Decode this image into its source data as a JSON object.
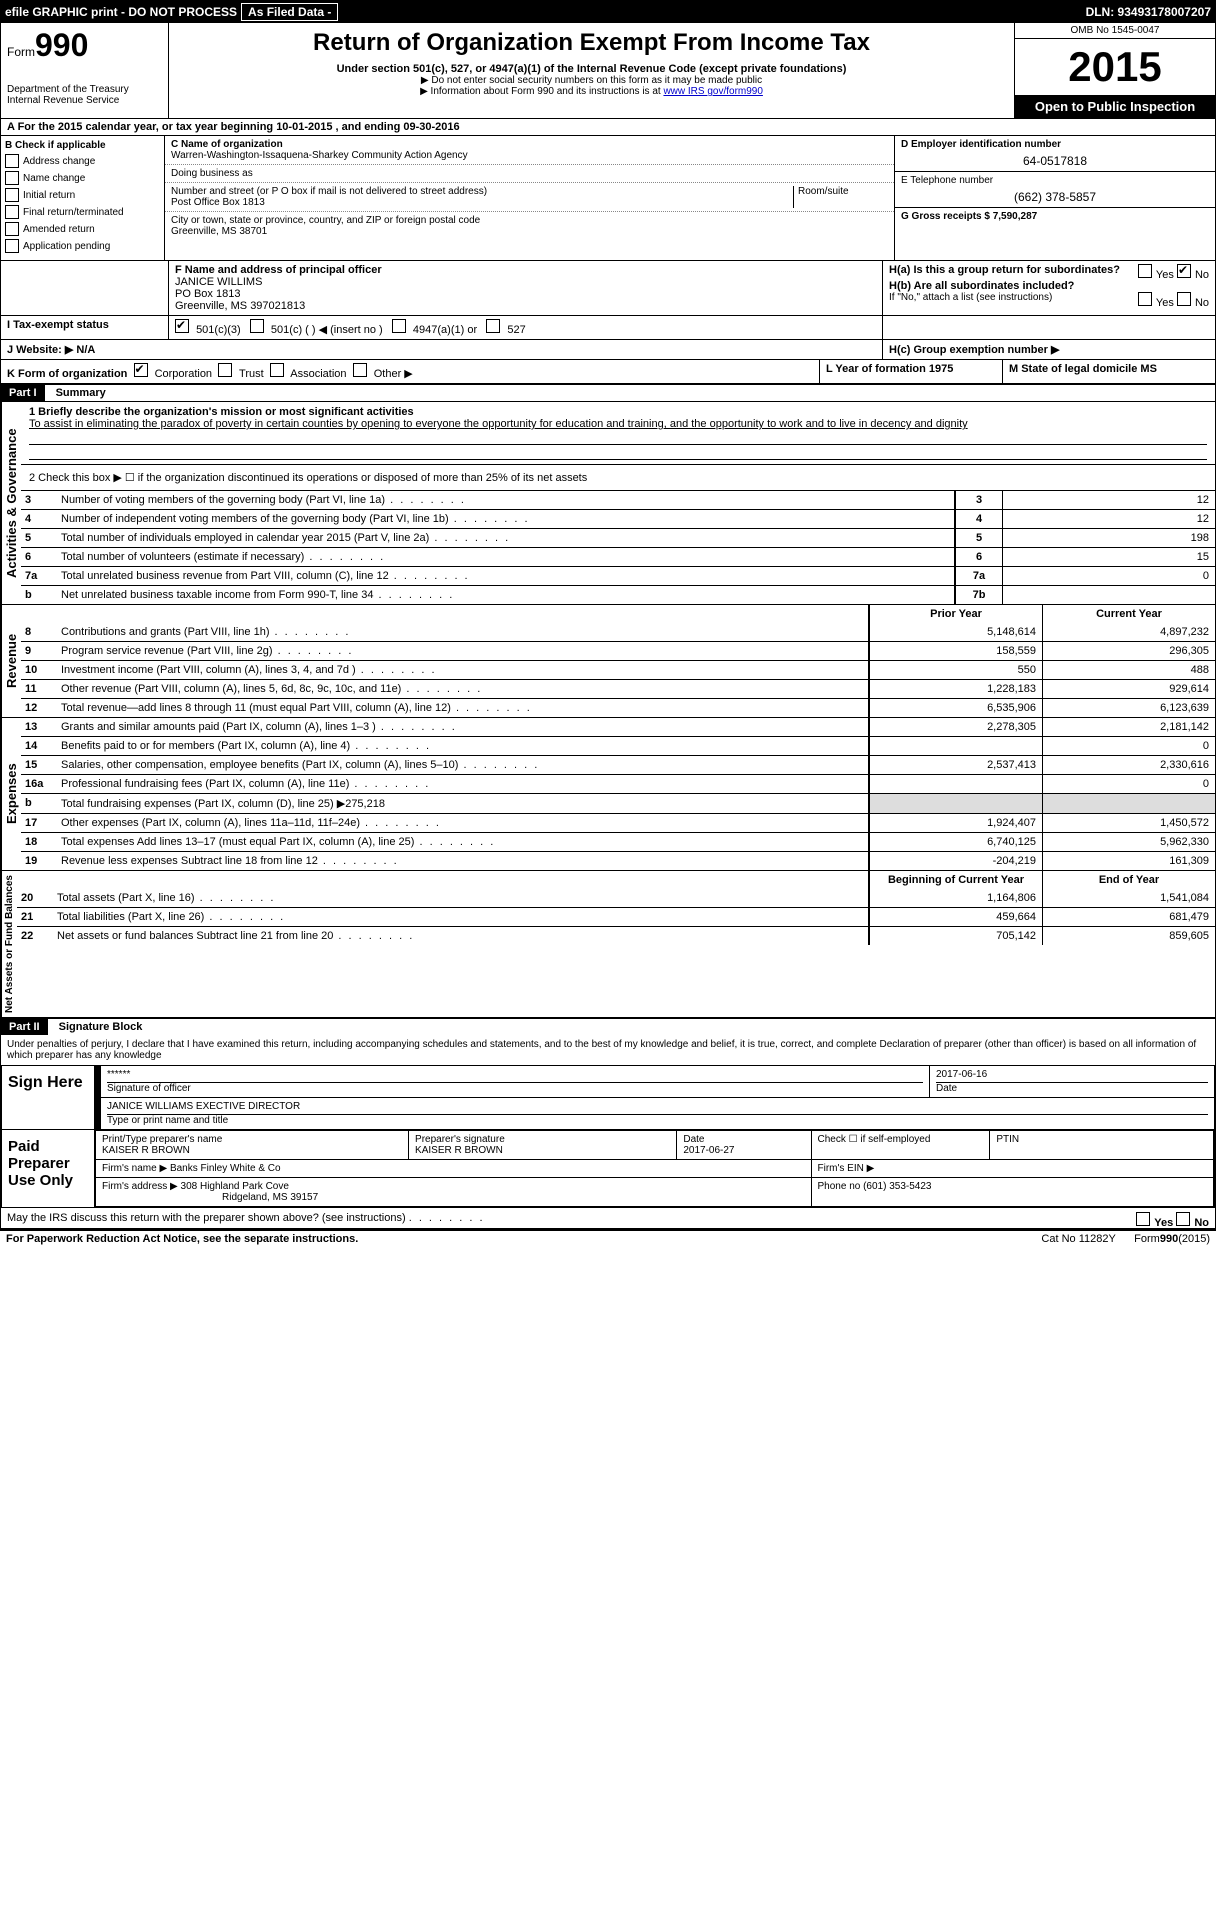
{
  "topbar": {
    "efile": "efile GRAPHIC print - DO NOT PROCESS",
    "asfiled": "As Filed Data -",
    "dln": "DLN: 93493178007207"
  },
  "header": {
    "form": "Form",
    "num": "990",
    "dept": "Department of the Treasury",
    "irs": "Internal Revenue Service",
    "title": "Return of Organization Exempt From Income Tax",
    "sub": "Under section 501(c), 527, or 4947(a)(1) of the Internal Revenue Code (except private foundations)",
    "note1": "▶ Do not enter social security numbers on this form as it may be made public",
    "note2_pre": "▶ Information about Form 990 and its instructions is at ",
    "note2_link": "www IRS gov/form990",
    "omb": "OMB No 1545-0047",
    "year": "2015",
    "open": "Open to Public Inspection"
  },
  "lineA": "A  For the 2015 calendar year, or tax year beginning 10-01-2015    , and ending 09-30-2016",
  "B": {
    "label": "B  Check if applicable",
    "items": [
      "Address change",
      "Name change",
      "Initial return",
      "Final return/terminated",
      "Amended return",
      "Application pending"
    ]
  },
  "C": {
    "label": "C Name of organization",
    "name": "Warren-Washington-Issaquena-Sharkey Community Action Agency",
    "dba_label": "Doing business as",
    "street_label": "Number and street (or P O  box if mail is not delivered to street address)",
    "room_label": "Room/suite",
    "street": "Post Office Box 1813",
    "city_label": "City or town, state or province, country, and ZIP or foreign postal code",
    "city": "Greenville, MS  38701"
  },
  "D": {
    "label": "D Employer identification number",
    "value": "64-0517818"
  },
  "E": {
    "label": "E Telephone number",
    "value": "(662) 378-5857"
  },
  "G": "G Gross receipts $ 7,590,287",
  "F": {
    "label": "F  Name and address of principal officer",
    "name": "JANICE WILLIMS",
    "addr1": "PO Box 1813",
    "addr2": "Greenville, MS  397021813"
  },
  "H": {
    "a": "H(a)  Is this a group return for subordinates?",
    "a_no": "No",
    "b": "H(b)  Are all subordinates included?",
    "b_note": "If \"No,\" attach a list  (see instructions)",
    "c": "H(c)   Group exemption number ▶"
  },
  "I": {
    "label": "I   Tax-exempt status",
    "opt1": "501(c)(3)",
    "opt2": "501(c) (   ) ◀ (insert no )",
    "opt3": "4947(a)(1) or",
    "opt4": "527"
  },
  "J": "J  Website: ▶  N/A",
  "K": {
    "label": "K Form of organization",
    "opts": [
      "Corporation",
      "Trust",
      "Association",
      "Other ▶"
    ]
  },
  "L": "L Year of formation  1975",
  "M": "M State of legal domicile  MS",
  "partI": {
    "title": "Part I",
    "name": "Summary",
    "l1": "1 Briefly describe the organization's mission or most significant activities",
    "l1_text": "To assist in eliminating the paradox of poverty in certain counties by opening to everyone the opportunity for education and training, and the opportunity to work and to live in decency and dignity",
    "l2": "2  Check this box ▶ ☐ if the organization discontinued its operations or disposed of more than 25% of its net assets",
    "rows_a": [
      {
        "n": "3",
        "t": "Number of voting members of the governing body (Part VI, line 1a)",
        "box": "3",
        "v": "12"
      },
      {
        "n": "4",
        "t": "Number of independent voting members of the governing body (Part VI, line 1b)",
        "box": "4",
        "v": "12"
      },
      {
        "n": "5",
        "t": "Total number of individuals employed in calendar year 2015 (Part V, line 2a)",
        "box": "5",
        "v": "198"
      },
      {
        "n": "6",
        "t": "Total number of volunteers (estimate if necessary)",
        "box": "6",
        "v": "15"
      },
      {
        "n": "7a",
        "t": "Total unrelated business revenue from Part VIII, column (C), line 12",
        "box": "7a",
        "v": "0"
      },
      {
        "n": "b",
        "t": "Net unrelated business taxable income from Form 990-T, line 34",
        "box": "7b",
        "v": ""
      }
    ],
    "col_prior": "Prior Year",
    "col_curr": "Current Year",
    "rev": [
      {
        "n": "8",
        "t": "Contributions and grants (Part VIII, line 1h)",
        "p": "5,148,614",
        "c": "4,897,232"
      },
      {
        "n": "9",
        "t": "Program service revenue (Part VIII, line 2g)",
        "p": "158,559",
        "c": "296,305"
      },
      {
        "n": "10",
        "t": "Investment income (Part VIII, column (A), lines 3, 4, and 7d )",
        "p": "550",
        "c": "488"
      },
      {
        "n": "11",
        "t": "Other revenue (Part VIII, column (A), lines 5, 6d, 8c, 9c, 10c, and 11e)",
        "p": "1,228,183",
        "c": "929,614"
      },
      {
        "n": "12",
        "t": "Total revenue—add lines 8 through 11 (must equal Part VIII, column (A), line 12)",
        "p": "6,535,906",
        "c": "6,123,639"
      }
    ],
    "exp": [
      {
        "n": "13",
        "t": "Grants and similar amounts paid (Part IX, column (A), lines 1–3 )",
        "p": "2,278,305",
        "c": "2,181,142"
      },
      {
        "n": "14",
        "t": "Benefits paid to or for members (Part IX, column (A), line 4)",
        "p": "",
        "c": "0"
      },
      {
        "n": "15",
        "t": "Salaries, other compensation, employee benefits (Part IX, column (A), lines 5–10)",
        "p": "2,537,413",
        "c": "2,330,616"
      },
      {
        "n": "16a",
        "t": "Professional fundraising fees (Part IX, column (A), line 11e)",
        "p": "",
        "c": "0"
      },
      {
        "n": "b",
        "t": "Total fundraising expenses (Part IX, column (D), line 25) ▶275,218",
        "p": "",
        "c": ""
      },
      {
        "n": "17",
        "t": "Other expenses (Part IX, column (A), lines 11a–11d, 11f–24e)",
        "p": "1,924,407",
        "c": "1,450,572"
      },
      {
        "n": "18",
        "t": "Total expenses  Add lines 13–17 (must equal Part IX, column (A), line 25)",
        "p": "6,740,125",
        "c": "5,962,330"
      },
      {
        "n": "19",
        "t": "Revenue less expenses  Subtract line 18 from line 12",
        "p": "-204,219",
        "c": "161,309"
      }
    ],
    "col_beg": "Beginning of Current Year",
    "col_end": "End of Year",
    "net": [
      {
        "n": "20",
        "t": "Total assets (Part X, line 16)",
        "p": "1,164,806",
        "c": "1,541,084"
      },
      {
        "n": "21",
        "t": "Total liabilities (Part X, line 26)",
        "p": "459,664",
        "c": "681,479"
      },
      {
        "n": "22",
        "t": "Net assets or fund balances  Subtract line 21 from line 20",
        "p": "705,142",
        "c": "859,605"
      }
    ]
  },
  "partII": {
    "title": "Part II",
    "name": "Signature Block",
    "perjury": "Under penalties of perjury, I declare that I have examined this return, including accompanying schedules and statements, and to the best of my knowledge and belief, it is true, correct, and complete  Declaration of preparer (other than officer) is based on all information of which preparer has any knowledge",
    "sign": "Sign Here",
    "sig_stars": "******",
    "sig_label": "Signature of officer",
    "date_label": "Date",
    "date": "2017-06-16",
    "officer": "JANICE WILLIAMS EXECTIVE DIRECTOR",
    "officer_label": "Type or print name and title",
    "paid": "Paid Preparer Use Only",
    "prep_name_label": "Print/Type preparer's name",
    "prep_name": "KAISER R BROWN",
    "prep_sig_label": "Preparer's signature",
    "prep_sig": "KAISER R BROWN",
    "prep_date_label": "Date",
    "prep_date": "2017-06-27",
    "self_emp": "Check ☐ if self-employed",
    "ptin": "PTIN",
    "firm_name_label": "Firm's name    ▶",
    "firm_name": "Banks Finley White & Co",
    "firm_ein": "Firm's EIN ▶",
    "firm_addr_label": "Firm's address ▶",
    "firm_addr1": "308 Highland Park Cove",
    "firm_addr2": "Ridgeland, MS  39157",
    "firm_phone": "Phone no  (601) 353-5423",
    "may_discuss": "May the IRS discuss this return with the preparer shown above? (see instructions)",
    "yes": "Yes",
    "no": "No"
  },
  "footer": {
    "pra": "For Paperwork Reduction Act Notice, see the separate instructions.",
    "cat": "Cat  No  11282Y",
    "form": "Form 990 (2015)"
  },
  "sideLabels": {
    "gov": "Activities & Governance",
    "rev": "Revenue",
    "exp": "Expenses",
    "net": "Net Assets or Fund Balances"
  }
}
